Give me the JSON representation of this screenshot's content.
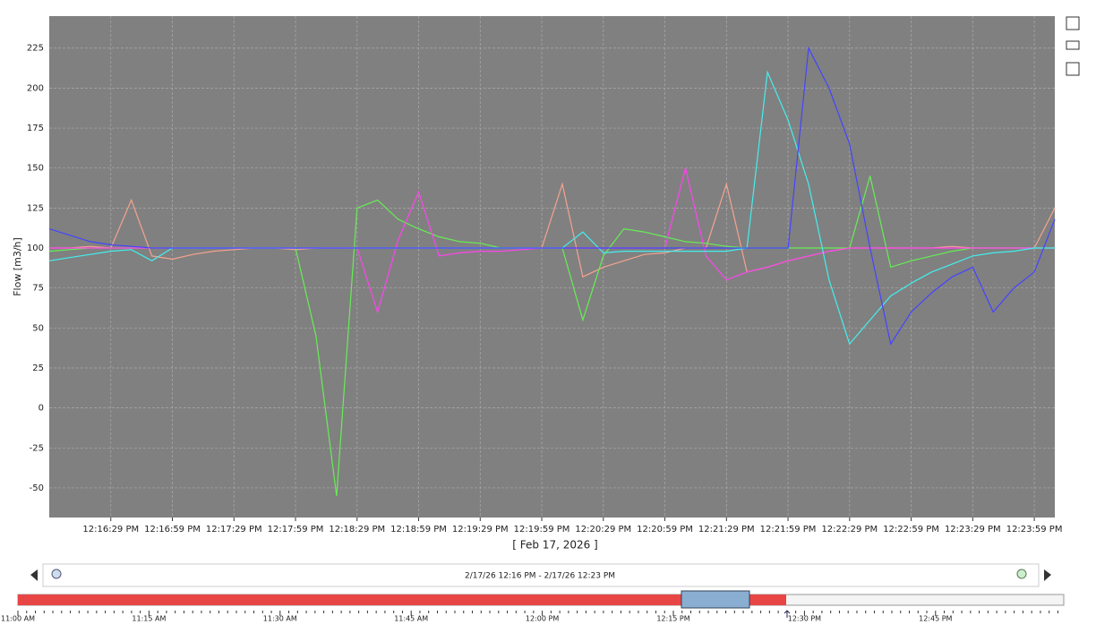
{
  "chart_data": {
    "type": "line",
    "y_label": "Flow [m3/h]",
    "x_label": "[ Feb 17, 2026 ]",
    "categories": [
      null,
      null,
      null,
      "12:16:29 PM",
      null,
      null,
      "12:16:59 PM",
      null,
      null,
      "12:17:29 PM",
      null,
      null,
      "12:17:59 PM",
      null,
      null,
      "12:18:29 PM",
      null,
      null,
      "12:18:59 PM",
      null,
      null,
      "12:19:29 PM",
      null,
      null,
      "12:19:59 PM",
      null,
      null,
      "12:20:29 PM",
      null,
      null,
      "12:20:59 PM",
      null,
      null,
      "12:21:29 PM",
      null,
      null,
      "12:21:59 PM",
      null,
      null,
      "12:22:29 PM",
      null,
      null,
      "12:22:59 PM",
      null,
      null,
      "12:23:29 PM",
      null,
      null,
      "12:23:59 PM",
      null
    ],
    "series": [
      {
        "color": "#f4a38f",
        "values": [
          100,
          100,
          101,
          100,
          130,
          95,
          93,
          96,
          98,
          99,
          100,
          100,
          99,
          100,
          100,
          100,
          100,
          100,
          100,
          100,
          100,
          100,
          100,
          100,
          100,
          140,
          82,
          88,
          92,
          96,
          97,
          100,
          100,
          140,
          85,
          88,
          92,
          95,
          98,
          100,
          100,
          100,
          100,
          100,
          101,
          100,
          100,
          100,
          100,
          125
        ]
      },
      {
        "color": "#66ee55",
        "values": [
          98,
          99,
          100,
          100,
          100,
          100,
          100,
          100,
          100,
          100,
          100,
          100,
          100,
          45,
          -55,
          125,
          130,
          118,
          112,
          107,
          104,
          103,
          100,
          100,
          100,
          100,
          55,
          95,
          112,
          110,
          107,
          104,
          103,
          101,
          100,
          100,
          100,
          100,
          100,
          100,
          145,
          88,
          92,
          95,
          98,
          100,
          100,
          100,
          100,
          100
        ]
      },
      {
        "color": "#ff44ee",
        "values": [
          100,
          100,
          100,
          100,
          100,
          100,
          100,
          100,
          100,
          100,
          100,
          100,
          100,
          100,
          100,
          100,
          60,
          105,
          135,
          95,
          97,
          98,
          98,
          99,
          100,
          100,
          100,
          100,
          100,
          100,
          100,
          150,
          95,
          80,
          85,
          88,
          92,
          95,
          98,
          100,
          100,
          100,
          100,
          100,
          100,
          100,
          100,
          100,
          100,
          100
        ]
      },
      {
        "color": "#44eeee",
        "values": [
          92,
          94,
          96,
          98,
          99,
          92,
          100,
          100,
          100,
          100,
          100,
          100,
          100,
          100,
          100,
          100,
          100,
          100,
          100,
          100,
          100,
          100,
          100,
          100,
          100,
          100,
          110,
          97,
          98,
          98,
          98,
          98,
          98,
          98,
          100,
          210,
          180,
          140,
          80,
          40,
          55,
          70,
          78,
          85,
          90,
          95,
          97,
          98,
          100,
          100
        ]
      },
      {
        "color": "#4444ff",
        "values": [
          112,
          108,
          104,
          102,
          101,
          100,
          100,
          100,
          100,
          100,
          100,
          100,
          100,
          100,
          100,
          100,
          100,
          100,
          100,
          100,
          100,
          100,
          100,
          100,
          100,
          100,
          100,
          100,
          100,
          100,
          100,
          100,
          100,
          100,
          100,
          100,
          100,
          225,
          200,
          165,
          100,
          40,
          60,
          72,
          82,
          88,
          60,
          75,
          85,
          118
        ]
      }
    ],
    "ylim": [
      -68.5,
      245
    ],
    "yticks": [
      -50,
      -25,
      0,
      25,
      50,
      75,
      100,
      125,
      150,
      175,
      200,
      225
    ],
    "grid": true
  },
  "range_selector": {
    "label": "2/17/26 12:16 PM - 2/17/26 12:23 PM",
    "ticks": [
      "11:00 AM",
      "11:15 AM",
      "11:30 AM",
      "11:45 AM",
      "12:00 PM",
      "12:15 PM",
      "12:30 PM",
      "12:45 PM"
    ]
  }
}
